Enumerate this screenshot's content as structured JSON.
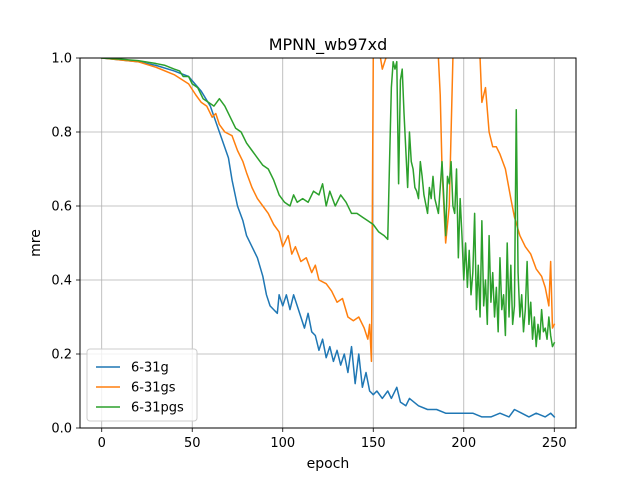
{
  "chart_data": {
    "type": "line",
    "title": "MPNN_wb97xd",
    "xlabel": "epoch",
    "ylabel": "mre",
    "xlim": [
      -12,
      262
    ],
    "ylim": [
      0.0,
      1.0
    ],
    "x_ticks": [
      0,
      50,
      100,
      150,
      200,
      250
    ],
    "y_ticks": [
      0.0,
      0.2,
      0.4,
      0.6,
      0.8,
      1.0
    ],
    "x_tick_labels": [
      "0",
      "50",
      "100",
      "150",
      "200",
      "250"
    ],
    "y_tick_labels": [
      "0.0",
      "0.2",
      "0.4",
      "0.6",
      "0.8",
      "1.0"
    ],
    "grid": true,
    "legend_position": "lower-left",
    "series": [
      {
        "name": "6-31g",
        "color": "#1f77b4",
        "points": [
          [
            0,
            1.0
          ],
          [
            10,
            0.995
          ],
          [
            20,
            0.99
          ],
          [
            30,
            0.98
          ],
          [
            40,
            0.965
          ],
          [
            48,
            0.95
          ],
          [
            55,
            0.91
          ],
          [
            60,
            0.87
          ],
          [
            65,
            0.8
          ],
          [
            70,
            0.73
          ],
          [
            72,
            0.67
          ],
          [
            75,
            0.6
          ],
          [
            78,
            0.56
          ],
          [
            80,
            0.52
          ],
          [
            83,
            0.49
          ],
          [
            86,
            0.46
          ],
          [
            89,
            0.41
          ],
          [
            91,
            0.36
          ],
          [
            93,
            0.33
          ],
          [
            95,
            0.32
          ],
          [
            97,
            0.31
          ],
          [
            98,
            0.36
          ],
          [
            100,
            0.33
          ],
          [
            102,
            0.36
          ],
          [
            104,
            0.32
          ],
          [
            106,
            0.36
          ],
          [
            108,
            0.33
          ],
          [
            110,
            0.3
          ],
          [
            112,
            0.27
          ],
          [
            114,
            0.31
          ],
          [
            116,
            0.26
          ],
          [
            118,
            0.25
          ],
          [
            120,
            0.21
          ],
          [
            122,
            0.24
          ],
          [
            124,
            0.19
          ],
          [
            126,
            0.22
          ],
          [
            128,
            0.18
          ],
          [
            130,
            0.21
          ],
          [
            132,
            0.17
          ],
          [
            134,
            0.2
          ],
          [
            136,
            0.15
          ],
          [
            138,
            0.22
          ],
          [
            140,
            0.12
          ],
          [
            142,
            0.2
          ],
          [
            144,
            0.11
          ],
          [
            146,
            0.15
          ],
          [
            148,
            0.1
          ],
          [
            150,
            0.09
          ],
          [
            152,
            0.1
          ],
          [
            155,
            0.08
          ],
          [
            158,
            0.1
          ],
          [
            160,
            0.08
          ],
          [
            163,
            0.11
          ],
          [
            165,
            0.07
          ],
          [
            168,
            0.06
          ],
          [
            170,
            0.08
          ],
          [
            175,
            0.06
          ],
          [
            180,
            0.05
          ],
          [
            185,
            0.05
          ],
          [
            190,
            0.04
          ],
          [
            195,
            0.04
          ],
          [
            200,
            0.04
          ],
          [
            205,
            0.04
          ],
          [
            210,
            0.03
          ],
          [
            215,
            0.03
          ],
          [
            220,
            0.04
          ],
          [
            225,
            0.03
          ],
          [
            228,
            0.05
          ],
          [
            232,
            0.04
          ],
          [
            236,
            0.03
          ],
          [
            240,
            0.04
          ],
          [
            245,
            0.03
          ],
          [
            248,
            0.04
          ],
          [
            250,
            0.03
          ]
        ]
      },
      {
        "name": "6-31gs",
        "color": "#ff7f0e",
        "points": [
          [
            0,
            1.0
          ],
          [
            10,
            0.995
          ],
          [
            20,
            0.99
          ],
          [
            30,
            0.975
          ],
          [
            40,
            0.955
          ],
          [
            48,
            0.93
          ],
          [
            52,
            0.9
          ],
          [
            55,
            0.88
          ],
          [
            58,
            0.87
          ],
          [
            61,
            0.84
          ],
          [
            63,
            0.85
          ],
          [
            65,
            0.82
          ],
          [
            68,
            0.8
          ],
          [
            72,
            0.79
          ],
          [
            75,
            0.75
          ],
          [
            78,
            0.72
          ],
          [
            80,
            0.69
          ],
          [
            83,
            0.65
          ],
          [
            86,
            0.62
          ],
          [
            89,
            0.6
          ],
          [
            92,
            0.58
          ],
          [
            95,
            0.55
          ],
          [
            98,
            0.53
          ],
          [
            100,
            0.49
          ],
          [
            103,
            0.52
          ],
          [
            105,
            0.47
          ],
          [
            107,
            0.49
          ],
          [
            110,
            0.45
          ],
          [
            113,
            0.46
          ],
          [
            116,
            0.42
          ],
          [
            118,
            0.44
          ],
          [
            120,
            0.4
          ],
          [
            124,
            0.39
          ],
          [
            127,
            0.37
          ],
          [
            130,
            0.34
          ],
          [
            133,
            0.35
          ],
          [
            136,
            0.3
          ],
          [
            139,
            0.29
          ],
          [
            142,
            0.3
          ],
          [
            145,
            0.27
          ],
          [
            147,
            0.24
          ],
          [
            148,
            0.28
          ],
          [
            149,
            0.18
          ],
          [
            150,
            1.0
          ]
        ]
      },
      {
        "name": "6-31gs",
        "color": "#ff7f0e",
        "points": [
          [
            154,
            1.0
          ],
          [
            155,
            0.97
          ],
          [
            157,
            1.0
          ]
        ]
      },
      {
        "name": "6-31gs",
        "color": "#ff7f0e",
        "points": [
          [
            186,
            1.0
          ],
          [
            187,
            0.9
          ],
          [
            188,
            0.7
          ],
          [
            190,
            0.5
          ],
          [
            192,
            0.6
          ],
          [
            194,
            1.0
          ]
        ]
      },
      {
        "name": "6-31gs",
        "color": "#ff7f0e",
        "points": [
          [
            209,
            1.0
          ],
          [
            210,
            0.88
          ],
          [
            212,
            0.92
          ],
          [
            214,
            0.8
          ],
          [
            216,
            0.76
          ],
          [
            218,
            0.76
          ],
          [
            220,
            0.74
          ],
          [
            223,
            0.7
          ],
          [
            226,
            0.62
          ],
          [
            228,
            0.57
          ],
          [
            231,
            0.52
          ],
          [
            234,
            0.49
          ],
          [
            237,
            0.47
          ],
          [
            240,
            0.43
          ],
          [
            243,
            0.41
          ],
          [
            245,
            0.38
          ],
          [
            247,
            0.33
          ],
          [
            248,
            0.45
          ],
          [
            249,
            0.27
          ],
          [
            250,
            0.28
          ]
        ]
      },
      {
        "name": "6-31pgs",
        "color": "#2ca02c",
        "points": [
          [
            0,
            1.0
          ],
          [
            10,
            0.997
          ],
          [
            20,
            0.993
          ],
          [
            30,
            0.985
          ],
          [
            35,
            0.98
          ],
          [
            40,
            0.97
          ],
          [
            43,
            0.965
          ],
          [
            45,
            0.95
          ],
          [
            48,
            0.95
          ],
          [
            50,
            0.93
          ],
          [
            53,
            0.92
          ],
          [
            56,
            0.89
          ],
          [
            59,
            0.88
          ],
          [
            62,
            0.87
          ],
          [
            65,
            0.89
          ],
          [
            68,
            0.87
          ],
          [
            71,
            0.84
          ],
          [
            74,
            0.81
          ],
          [
            77,
            0.8
          ],
          [
            80,
            0.77
          ],
          [
            83,
            0.75
          ],
          [
            86,
            0.73
          ],
          [
            89,
            0.71
          ],
          [
            92,
            0.7
          ],
          [
            95,
            0.67
          ],
          [
            98,
            0.63
          ],
          [
            101,
            0.61
          ],
          [
            104,
            0.6
          ],
          [
            106,
            0.63
          ],
          [
            108,
            0.61
          ],
          [
            111,
            0.62
          ],
          [
            114,
            0.61
          ],
          [
            117,
            0.64
          ],
          [
            120,
            0.63
          ],
          [
            122,
            0.66
          ],
          [
            124,
            0.6
          ],
          [
            126,
            0.64
          ],
          [
            129,
            0.6
          ],
          [
            132,
            0.63
          ],
          [
            135,
            0.61
          ],
          [
            138,
            0.58
          ],
          [
            141,
            0.58
          ],
          [
            144,
            0.57
          ],
          [
            147,
            0.56
          ],
          [
            150,
            0.55
          ],
          [
            153,
            0.53
          ],
          [
            156,
            0.52
          ],
          [
            158,
            0.51
          ],
          [
            159,
            0.72
          ],
          [
            160,
            0.92
          ],
          [
            161,
            0.99
          ],
          [
            162,
            0.97
          ],
          [
            163,
            0.99
          ],
          [
            164,
            0.66
          ],
          [
            165,
            0.94
          ],
          [
            166,
            0.97
          ],
          [
            167,
            0.85
          ],
          [
            168,
            0.75
          ],
          [
            169,
            0.65
          ],
          [
            170,
            0.8
          ],
          [
            171,
            0.72
          ],
          [
            172,
            0.7
          ],
          [
            173,
            0.65
          ],
          [
            174,
            0.64
          ],
          [
            175,
            0.62
          ],
          [
            176,
            0.72
          ],
          [
            177,
            0.68
          ],
          [
            178,
            0.63
          ],
          [
            180,
            0.58
          ],
          [
            181,
            0.65
          ],
          [
            182,
            0.62
          ],
          [
            183,
            0.68
          ],
          [
            184,
            0.62
          ],
          [
            186,
            0.58
          ],
          [
            188,
            0.72
          ],
          [
            189,
            0.62
          ],
          [
            190,
            0.52
          ],
          [
            191,
            0.68
          ],
          [
            192,
            0.66
          ],
          [
            193,
            0.72
          ],
          [
            194,
            0.6
          ],
          [
            195,
            0.58
          ],
          [
            196,
            0.7
          ],
          [
            197,
            0.46
          ],
          [
            198,
            0.62
          ],
          [
            199,
            0.52
          ],
          [
            200,
            0.4
          ],
          [
            201,
            0.5
          ],
          [
            202,
            0.38
          ],
          [
            203,
            0.48
          ],
          [
            204,
            0.36
          ],
          [
            205,
            0.42
          ],
          [
            206,
            0.58
          ],
          [
            207,
            0.32
          ],
          [
            208,
            0.44
          ],
          [
            209,
            0.3
          ],
          [
            210,
            0.56
          ],
          [
            211,
            0.33
          ],
          [
            212,
            0.4
          ],
          [
            213,
            0.28
          ],
          [
            214,
            0.52
          ],
          [
            215,
            0.34
          ],
          [
            216,
            0.42
          ],
          [
            217,
            0.3
          ],
          [
            218,
            0.38
          ],
          [
            219,
            0.26
          ],
          [
            220,
            0.46
          ],
          [
            221,
            0.32
          ],
          [
            222,
            0.36
          ],
          [
            223,
            0.25
          ],
          [
            224,
            0.5
          ],
          [
            225,
            0.3
          ],
          [
            226,
            0.44
          ],
          [
            227,
            0.28
          ],
          [
            228,
            0.33
          ],
          [
            229,
            0.86
          ],
          [
            230,
            0.42
          ],
          [
            231,
            0.3
          ],
          [
            232,
            0.36
          ],
          [
            233,
            0.26
          ],
          [
            234,
            0.32
          ],
          [
            235,
            0.45
          ],
          [
            236,
            0.28
          ],
          [
            237,
            0.34
          ],
          [
            238,
            0.24
          ],
          [
            239,
            0.3
          ],
          [
            240,
            0.22
          ],
          [
            241,
            0.28
          ],
          [
            242,
            0.24
          ],
          [
            243,
            0.32
          ],
          [
            244,
            0.26
          ],
          [
            245,
            0.27
          ],
          [
            246,
            0.24
          ],
          [
            247,
            0.3
          ],
          [
            248,
            0.25
          ],
          [
            249,
            0.22
          ],
          [
            250,
            0.23
          ]
        ]
      }
    ]
  },
  "legend": [
    {
      "label": "6-31g",
      "color": "#1f77b4"
    },
    {
      "label": "6-31gs",
      "color": "#ff7f0e"
    },
    {
      "label": "6-31pgs",
      "color": "#2ca02c"
    }
  ]
}
